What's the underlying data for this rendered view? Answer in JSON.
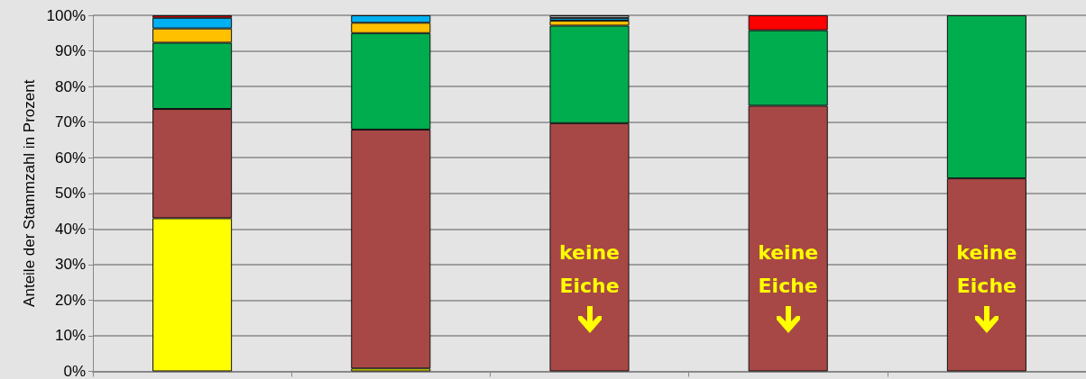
{
  "chart_data": {
    "type": "bar",
    "stacked": true,
    "ylabel": "Anteile der Stammzahl in Prozent",
    "categories": [
      null,
      null,
      null,
      null,
      null
    ],
    "series": [
      {
        "color": "#ffff00",
        "values": [
          43,
          0.8,
          null,
          null,
          null
        ]
      },
      {
        "color": "#a84846",
        "values": [
          30.7,
          67.1,
          69.7,
          74.6,
          54.2
        ]
      },
      {
        "color": "#00ad4e",
        "values": [
          18.6,
          27.1,
          27.4,
          21.2,
          45.8
        ]
      },
      {
        "color": "#ffc000",
        "values": [
          4,
          2.9,
          1.4,
          null,
          null
        ]
      },
      {
        "color": "#00b0f0",
        "values": [
          3,
          2.1,
          0.7,
          null,
          null
        ]
      },
      {
        "color": "#a6a6a6",
        "values": [
          null,
          null,
          0.8,
          null,
          null
        ]
      },
      {
        "color": "#ff0000",
        "values": [
          0.7,
          null,
          null,
          4.2,
          null
        ]
      }
    ],
    "ylim": [
      0,
      100
    ],
    "yticks": [
      {
        "value": 0,
        "label": "0%"
      },
      {
        "value": 10,
        "label": "10%"
      },
      {
        "value": 20,
        "label": "20%"
      },
      {
        "value": 30,
        "label": "30%"
      },
      {
        "value": 40,
        "label": "40%"
      },
      {
        "value": 50,
        "label": "50%"
      },
      {
        "value": 60,
        "label": "60%"
      },
      {
        "value": 70,
        "label": "70%"
      },
      {
        "value": 80,
        "label": "80%"
      },
      {
        "value": 90,
        "label": "90%"
      },
      {
        "value": 100,
        "label": "100%"
      }
    ],
    "grid": "y",
    "annotations": [
      "keine Eiche",
      "keine Eiche",
      "keine Eiche"
    ]
  }
}
